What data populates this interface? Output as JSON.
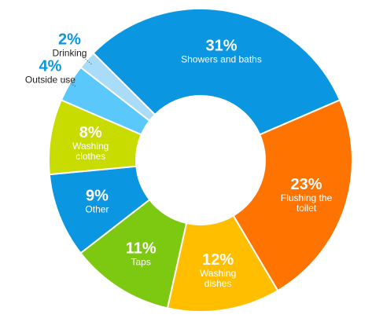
{
  "chart_data": {
    "type": "donut",
    "categories": [
      "Showers and baths",
      "Flushing the toilet",
      "Washing dishes",
      "Taps",
      "Other",
      "Washing clothes",
      "Outside use",
      "Drinking"
    ],
    "values": [
      31,
      23,
      12,
      11,
      9,
      8,
      4,
      2
    ],
    "value_labels": [
      "31%",
      "23%",
      "12%",
      "11%",
      "9%",
      "8%",
      "4%",
      "2%"
    ],
    "colors": [
      "#0a96e0",
      "#ff7300",
      "#ffbf00",
      "#7dc810",
      "#0a96e0",
      "#c8dc00",
      "#5ac8fa",
      "#a8dcf8"
    ]
  }
}
